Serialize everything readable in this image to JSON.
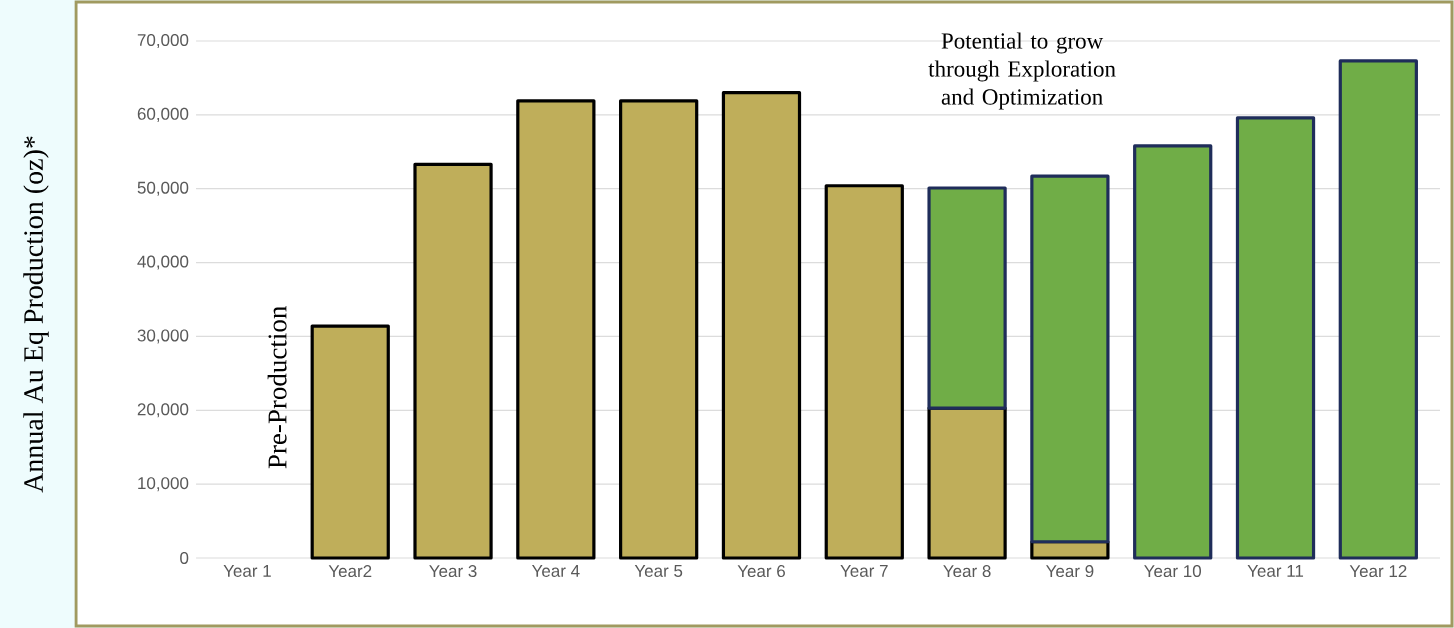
{
  "chart_data": {
    "type": "bar",
    "stacked": true,
    "ylabel": "Annual Au Eq Production (oz)*",
    "categories": [
      "Year 1",
      "Year2",
      "Year 3",
      "Year 4",
      "Year 5",
      "Year 6",
      "Year 7",
      "Year 8",
      "Year 9",
      "Year 10",
      "Year 11",
      "Year 12"
    ],
    "series": [
      {
        "color": "#bfae5a",
        "values": [
          null,
          31400,
          53300,
          61900,
          61900,
          63000,
          50400,
          20300,
          2200,
          null,
          null,
          null
        ]
      },
      {
        "color": "#70ad47",
        "values": [
          null,
          null,
          null,
          null,
          null,
          null,
          null,
          29800,
          49500,
          55800,
          59600,
          67300
        ]
      }
    ],
    "ylim": [
      0,
      70000
    ],
    "yticks": [
      0,
      {
        "value": 10000,
        "label": "10,000"
      },
      {
        "value": 20000,
        "label": "20,000"
      },
      {
        "value": 30000,
        "label": "30,000"
      },
      {
        "value": 40000,
        "label": "40,000"
      },
      {
        "value": 50000,
        "label": "50,000"
      },
      {
        "value": 60000,
        "label": "60,000"
      },
      {
        "value": 70000,
        "label": "70,000"
      }
    ],
    "grid": "y",
    "annotations": [
      "Pre-Production",
      "Potential to grow through Exploration and Optimization"
    ]
  }
}
